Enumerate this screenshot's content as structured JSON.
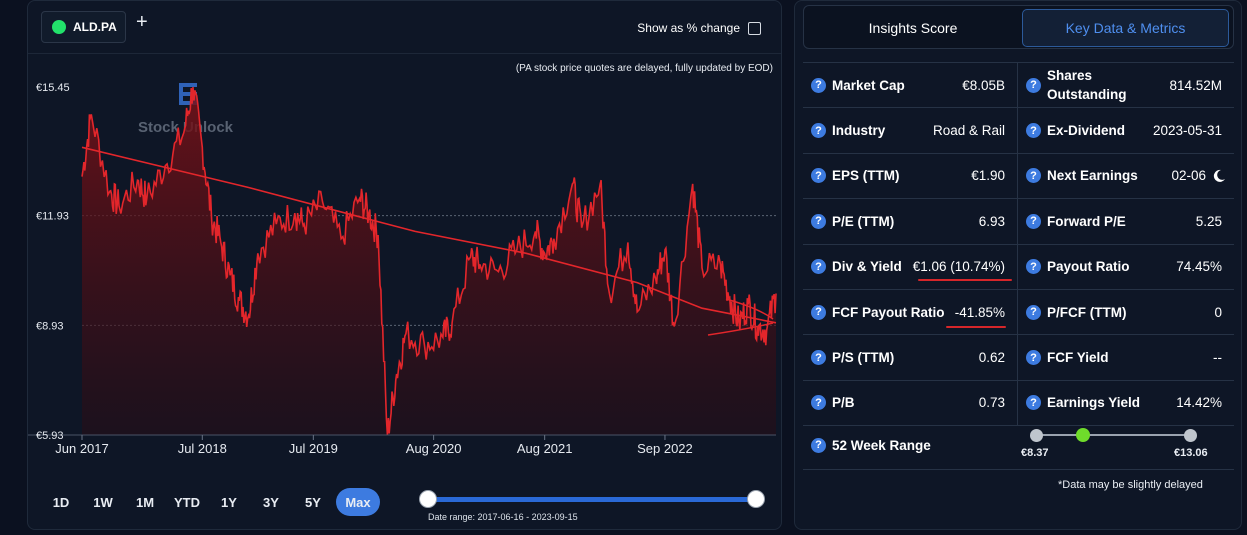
{
  "header": {
    "ticker": "ALD.PA",
    "plus_icon": "plus-icon",
    "pct_toggle_label": "Show as % change",
    "delay_note": "(PA stock price quotes are delayed, fully updated by EOD)",
    "watermark": "Stock Unlock"
  },
  "chart_data": {
    "type": "line",
    "y_ticks": [
      "€15.45",
      "€11.93",
      "€8.93",
      "€5.93"
    ],
    "x_ticks": [
      "Jun 2017",
      "Jul 2018",
      "Jul 2019",
      "Aug 2020",
      "Aug 2021",
      "Sep 2022"
    ],
    "ylim": [
      5.93,
      15.45
    ],
    "series": [
      {
        "x": [
          "2017-06",
          "2017-07",
          "2017-09",
          "2017-10",
          "2017-12",
          "2018-01",
          "2018-03",
          "2018-05",
          "2018-06",
          "2018-07",
          "2018-08",
          "2018-09",
          "2018-10",
          "2018-11",
          "2018-12",
          "2019-01",
          "2019-03",
          "2019-05",
          "2019-06",
          "2019-08",
          "2019-10",
          "2019-12",
          "2020-01",
          "2020-02",
          "2020-03",
          "2020-04",
          "2020-05",
          "2020-07",
          "2020-09",
          "2020-10",
          "2020-12",
          "2021-01",
          "2021-03",
          "2021-05",
          "2021-07",
          "2021-08",
          "2021-09",
          "2021-11",
          "2021-12",
          "2022-02",
          "2022-03",
          "2022-05",
          "2022-06",
          "2022-08",
          "2022-09",
          "2022-10",
          "2022-12",
          "2023-01",
          "2023-03",
          "2023-04",
          "2023-05",
          "2023-06",
          "2023-07",
          "2023-08",
          "2023-09"
        ],
        "values": [
          13.0,
          14.7,
          12.6,
          12.2,
          12.9,
          12.4,
          13.3,
          14.2,
          15.45,
          13.8,
          11.9,
          11.2,
          10.3,
          9.6,
          9.2,
          10.9,
          11.7,
          12.0,
          11.7,
          12.3,
          11.3,
          12.4,
          12.0,
          11.4,
          5.93,
          7.6,
          8.7,
          8.4,
          8.6,
          9.0,
          10.8,
          10.6,
          10.4,
          11.0,
          11.5,
          10.9,
          11.3,
          12.8,
          11.6,
          12.8,
          9.8,
          11.2,
          9.3,
          10.2,
          11.0,
          8.9,
          12.8,
          10.5,
          10.6,
          9.7,
          9.0,
          9.5,
          8.9,
          8.8,
          9.8
        ]
      },
      {
        "x": [
          "2017-06",
          "2018-12",
          "2019-12",
          "2020-06",
          "2021-06",
          "2022-06",
          "2023-01",
          "2023-09"
        ],
        "values": [
          13.8,
          12.7,
          11.9,
          11.5,
          10.9,
          10.1,
          9.4,
          9.0
        ]
      }
    ],
    "grid": true
  },
  "range": {
    "buttons": [
      "1D",
      "1W",
      "1M",
      "YTD",
      "1Y",
      "3Y",
      "5Y",
      "Max"
    ],
    "active": "Max",
    "date_range_text": "Date range: 2017-06-16 - 2023-09-15"
  },
  "tabs": [
    "Insights Score",
    "Key Data & Metrics"
  ],
  "metrics": [
    {
      "label": "Market Cap",
      "value": "€8.05B"
    },
    {
      "label": "Shares Outstanding",
      "value": "814.52M"
    },
    {
      "label": "Industry",
      "value": "Road & Rail"
    },
    {
      "label": "Ex-Dividend",
      "value": "2023-05-31"
    },
    {
      "label": "EPS (TTM)",
      "value": "€1.90"
    },
    {
      "label": "Next Earnings",
      "value": "02-06"
    },
    {
      "label": "P/E (TTM)",
      "value": "6.93"
    },
    {
      "label": "Forward P/E",
      "value": "5.25"
    },
    {
      "label": "Div & Yield",
      "value": "€1.06 (10.74%)"
    },
    {
      "label": "Payout Ratio",
      "value": "74.45%"
    },
    {
      "label": "FCF Payout Ratio",
      "value": "-41.85%"
    },
    {
      "label": "P/FCF (TTM)",
      "value": "0"
    },
    {
      "label": "P/S (TTM)",
      "value": "0.62"
    },
    {
      "label": "FCF Yield",
      "value": "--"
    },
    {
      "label": "P/B",
      "value": "0.73"
    },
    {
      "label": "Earnings Yield",
      "value": "14.42%"
    }
  ],
  "week52": {
    "label": "52 Week Range",
    "low": "€8.37",
    "high": "€13.06",
    "position_fraction": 0.3
  },
  "footer_note": "*Data may be slightly delayed",
  "colors": {
    "line": "#e3262b",
    "accent": "#3d7be0",
    "positive": "#22e26b"
  }
}
